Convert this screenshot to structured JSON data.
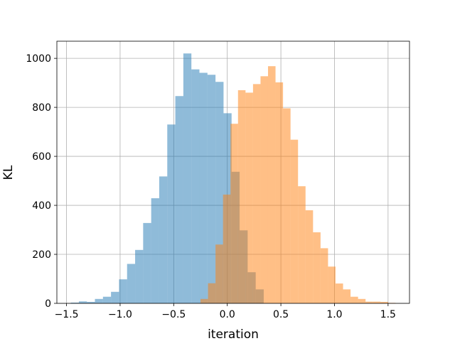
{
  "chart_data": {
    "type": "histogram",
    "title": "",
    "xlabel": "iteration",
    "ylabel": "KL",
    "xlim": [
      -1.59,
      1.7
    ],
    "ylim": [
      0,
      1070
    ],
    "xticks": [
      -1.5,
      -1.0,
      -0.5,
      0.0,
      0.5,
      1.0,
      1.5
    ],
    "xtick_labels": [
      "−1.5",
      "−1.0",
      "−0.5",
      "0.0",
      "0.5",
      "1.0",
      "1.5"
    ],
    "yticks": [
      0,
      200,
      400,
      600,
      800,
      1000
    ],
    "ytick_labels": [
      "0",
      "200",
      "400",
      "600",
      "800",
      "1000"
    ],
    "grid": true,
    "series": [
      {
        "color": "#1f77b4",
        "alpha": 0.5,
        "bins": [
          {
            "x0": -1.46,
            "x1": -1.385,
            "count": 3
          },
          {
            "x0": -1.385,
            "x1": -1.31,
            "count": 8
          },
          {
            "x0": -1.31,
            "x1": -1.235,
            "count": 6
          },
          {
            "x0": -1.235,
            "x1": -1.16,
            "count": 18
          },
          {
            "x0": -1.16,
            "x1": -1.085,
            "count": 27
          },
          {
            "x0": -1.085,
            "x1": -1.01,
            "count": 47
          },
          {
            "x0": -1.01,
            "x1": -0.935,
            "count": 98
          },
          {
            "x0": -0.935,
            "x1": -0.86,
            "count": 161
          },
          {
            "x0": -0.86,
            "x1": -0.785,
            "count": 218
          },
          {
            "x0": -0.785,
            "x1": -0.71,
            "count": 328
          },
          {
            "x0": -0.71,
            "x1": -0.635,
            "count": 429
          },
          {
            "x0": -0.635,
            "x1": -0.56,
            "count": 518
          },
          {
            "x0": -0.56,
            "x1": -0.485,
            "count": 730
          },
          {
            "x0": -0.485,
            "x1": -0.41,
            "count": 846
          },
          {
            "x0": -0.41,
            "x1": -0.335,
            "count": 1020
          },
          {
            "x0": -0.335,
            "x1": -0.26,
            "count": 955
          },
          {
            "x0": -0.26,
            "x1": -0.185,
            "count": 941
          },
          {
            "x0": -0.185,
            "x1": -0.11,
            "count": 933
          },
          {
            "x0": -0.11,
            "x1": -0.035,
            "count": 904
          },
          {
            "x0": -0.035,
            "x1": 0.04,
            "count": 776
          },
          {
            "x0": 0.04,
            "x1": 0.115,
            "count": 537
          },
          {
            "x0": 0.115,
            "x1": 0.19,
            "count": 298
          },
          {
            "x0": 0.19,
            "x1": 0.265,
            "count": 127
          },
          {
            "x0": 0.265,
            "x1": 0.34,
            "count": 57
          }
        ]
      },
      {
        "color": "#ff7f0e",
        "alpha": 0.5,
        "bins": [
          {
            "x0": -0.25,
            "x1": -0.18,
            "count": 18
          },
          {
            "x0": -0.18,
            "x1": -0.11,
            "count": 82
          },
          {
            "x0": -0.11,
            "x1": -0.04,
            "count": 240
          },
          {
            "x0": -0.04,
            "x1": 0.03,
            "count": 444
          },
          {
            "x0": 0.03,
            "x1": 0.1,
            "count": 733
          },
          {
            "x0": 0.1,
            "x1": 0.17,
            "count": 870
          },
          {
            "x0": 0.17,
            "x1": 0.24,
            "count": 860
          },
          {
            "x0": 0.24,
            "x1": 0.31,
            "count": 895
          },
          {
            "x0": 0.31,
            "x1": 0.38,
            "count": 927
          },
          {
            "x0": 0.38,
            "x1": 0.45,
            "count": 968
          },
          {
            "x0": 0.45,
            "x1": 0.52,
            "count": 902
          },
          {
            "x0": 0.52,
            "x1": 0.59,
            "count": 796
          },
          {
            "x0": 0.59,
            "x1": 0.66,
            "count": 668
          },
          {
            "x0": 0.66,
            "x1": 0.73,
            "count": 478
          },
          {
            "x0": 0.73,
            "x1": 0.8,
            "count": 380
          },
          {
            "x0": 0.8,
            "x1": 0.87,
            "count": 290
          },
          {
            "x0": 0.87,
            "x1": 0.94,
            "count": 225
          },
          {
            "x0": 0.94,
            "x1": 1.01,
            "count": 150
          },
          {
            "x0": 1.01,
            "x1": 1.08,
            "count": 81
          },
          {
            "x0": 1.08,
            "x1": 1.15,
            "count": 57
          },
          {
            "x0": 1.15,
            "x1": 1.22,
            "count": 27
          },
          {
            "x0": 1.22,
            "x1": 1.29,
            "count": 18
          },
          {
            "x0": 1.29,
            "x1": 1.36,
            "count": 7
          },
          {
            "x0": 1.36,
            "x1": 1.43,
            "count": 7
          },
          {
            "x0": 1.43,
            "x1": 1.5,
            "count": 6
          },
          {
            "x0": 1.5,
            "x1": 1.57,
            "count": 2
          }
        ]
      }
    ]
  }
}
